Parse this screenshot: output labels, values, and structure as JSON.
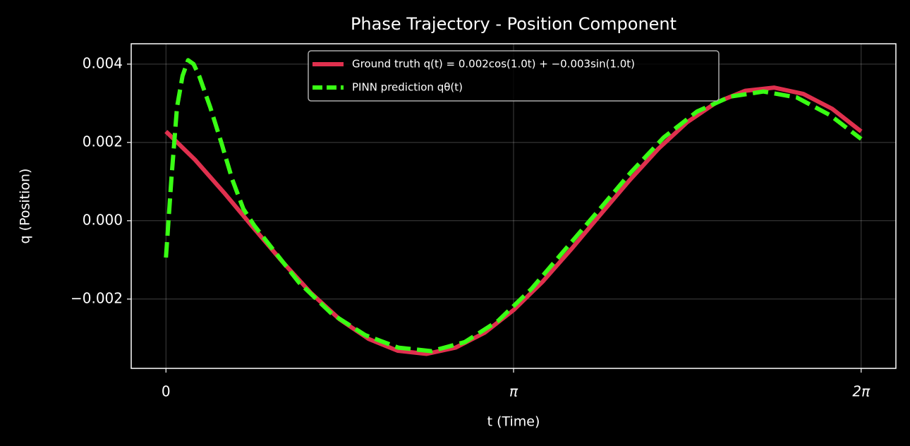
{
  "chart_data": {
    "type": "line",
    "title": "Phase Trajectory - Position Component",
    "x_label": "t (Time)",
    "y_label": "q (Position)",
    "xlim": [
      -0.314,
      6.597
    ],
    "ylim": [
      -0.00377,
      0.00452
    ],
    "xticks": [
      0,
      {
        "value": 3.14159,
        "label": "π"
      },
      {
        "value": 6.28319,
        "label": "2π"
      }
    ],
    "yticks": [
      {
        "value": -0.002,
        "label": "−0.002"
      },
      {
        "value": 0,
        "label": "0.000"
      },
      0.002,
      0.004
    ],
    "grid": true,
    "legend": "upper center",
    "series": [
      {
        "name": "Ground truth q(t) = 0.002cos(1.0t) + −0.003sin(1.0t)",
        "color": "#e0304e",
        "dash": false,
        "x": [
          0,
          0.262,
          0.524,
          0.785,
          1.047,
          1.309,
          1.571,
          1.833,
          2.094,
          2.356,
          2.618,
          2.88,
          3.142,
          3.403,
          3.665,
          3.927,
          4.189,
          4.451,
          4.712,
          4.974,
          5.236,
          5.498,
          5.76,
          6.021,
          6.283
        ],
        "values": [
          0.00228,
          0.00156,
          0.00072,
          -0.00016,
          -0.00103,
          -0.00184,
          -0.00252,
          -0.00302,
          -0.00332,
          -0.0034,
          -0.00324,
          -0.00286,
          -0.00228,
          -0.00156,
          -0.00072,
          0.00016,
          0.00103,
          0.00184,
          0.00252,
          0.00302,
          0.00332,
          0.0034,
          0.00324,
          0.00286,
          0.00228
        ]
      },
      {
        "name": "PINN prediction qθ(t)",
        "color": "#39ff14",
        "dash": true,
        "x": [
          0,
          0.05,
          0.1,
          0.15,
          0.2,
          0.25,
          0.3,
          0.4,
          0.5,
          0.6,
          0.7,
          0.8,
          1.0,
          1.2,
          1.5,
          1.8,
          2.1,
          2.4,
          2.7,
          3.0,
          3.3,
          3.6,
          3.9,
          4.2,
          4.5,
          4.8,
          5.1,
          5.4,
          5.7,
          6.0,
          6.283
        ],
        "values": [
          -0.00094,
          0.0011,
          0.0029,
          0.0037,
          0.0041,
          0.004,
          0.0037,
          0.0029,
          0.002,
          0.00105,
          0.0003,
          -0.00013,
          -0.00085,
          -0.00157,
          -0.00238,
          -0.00292,
          -0.00324,
          -0.00333,
          -0.0031,
          -0.00256,
          -0.00175,
          -0.00076,
          0.00023,
          0.00123,
          0.00213,
          0.00279,
          0.00317,
          0.0033,
          0.00315,
          0.0027,
          0.00209
        ]
      }
    ]
  }
}
